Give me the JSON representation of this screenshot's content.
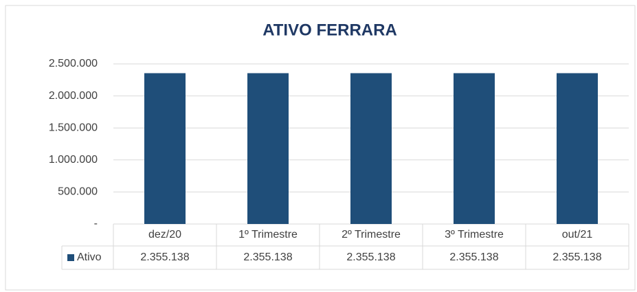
{
  "chart_data": {
    "type": "bar",
    "title": "ATIVO FERRARA",
    "categories": [
      "dez/20",
      "1º Trimestre",
      "2º Trimestre",
      "3º Trimestre",
      "out/21"
    ],
    "series": [
      {
        "name": "Ativo",
        "color": "#1f4e79",
        "values": [
          2355138,
          2355138,
          2355138,
          2355138,
          2355138
        ],
        "value_labels": [
          "2.355.138",
          "2.355.138",
          "2.355.138",
          "2.355.138",
          "2.355.138"
        ]
      }
    ],
    "ylim": [
      0,
      2500000
    ],
    "yticks": [
      {
        "value": 0,
        "label": "-"
      },
      {
        "value": 500000,
        "label": "500.000"
      },
      {
        "value": 1000000,
        "label": "1.000.000"
      },
      {
        "value": 1500000,
        "label": "1.500.000"
      },
      {
        "value": 2000000,
        "label": "2.000.000"
      },
      {
        "value": 2500000,
        "label": "2.500.000"
      }
    ],
    "grid": true,
    "data_table": true
  }
}
